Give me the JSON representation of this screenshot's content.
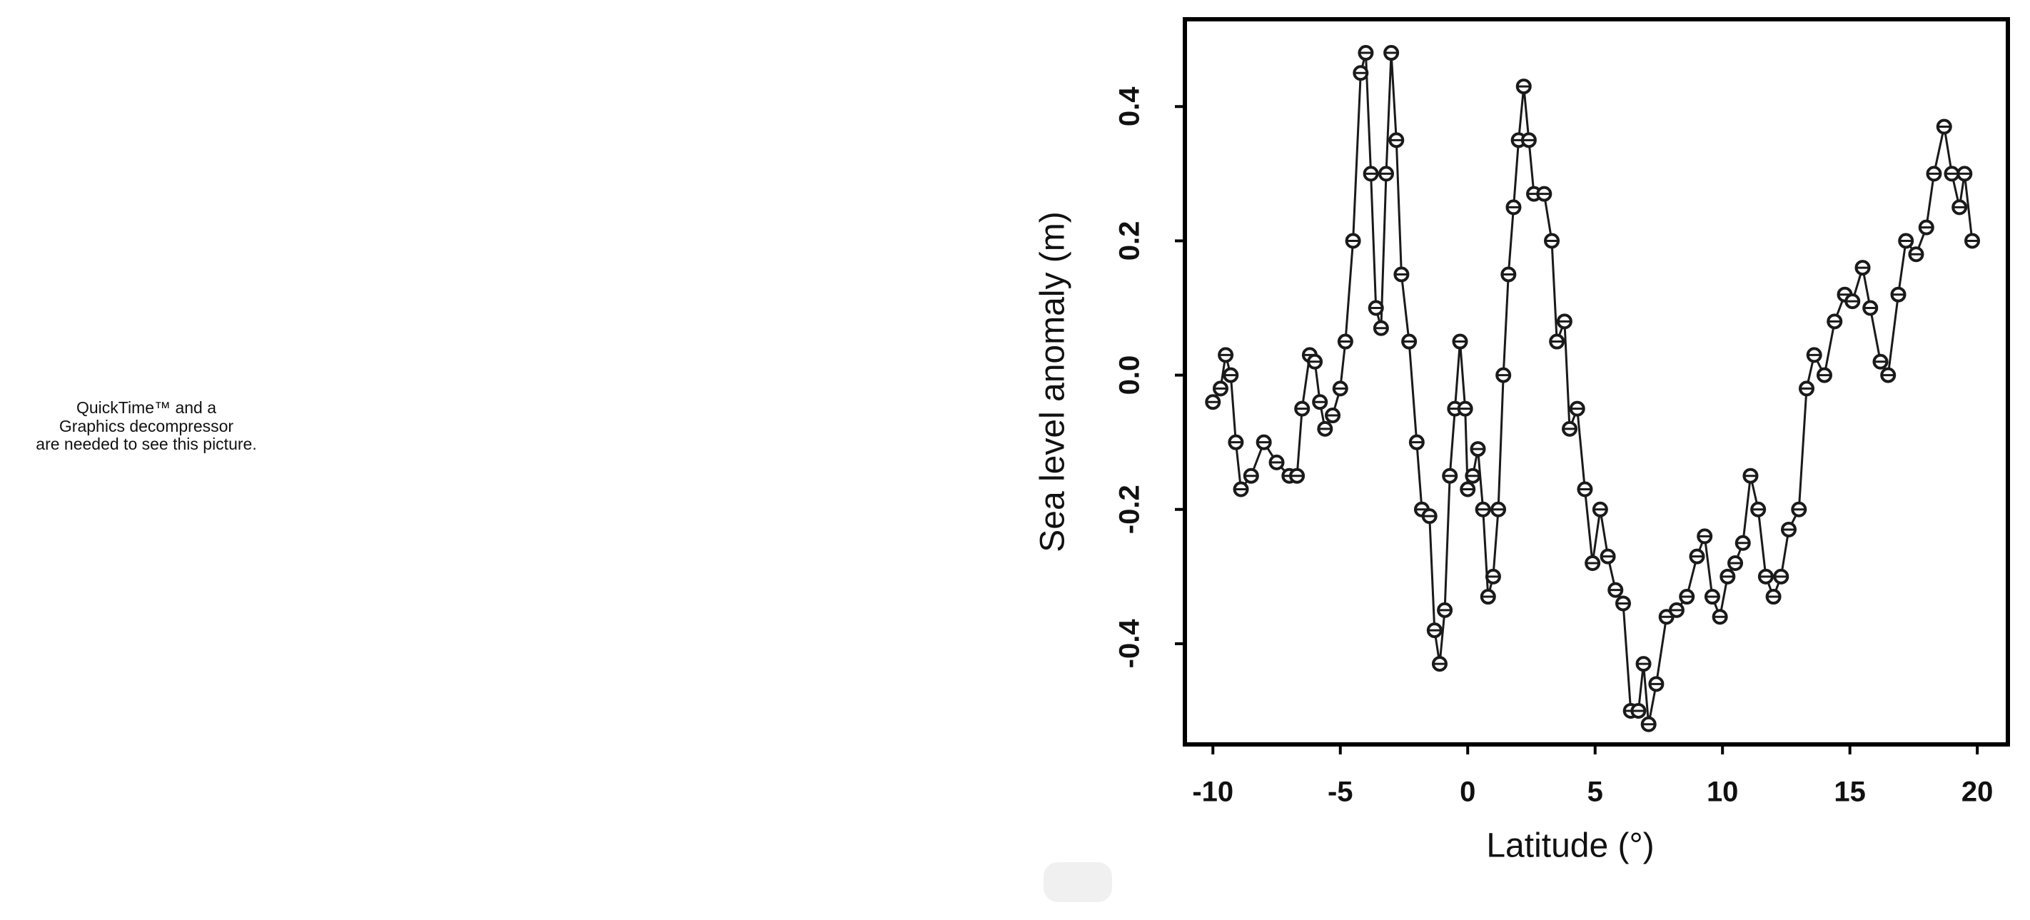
{
  "placeholder": {
    "lines": [
      "QuickTime™ and a",
      "Graphics decompressor",
      "are needed to see this picture."
    ]
  },
  "chart_data": {
    "type": "line",
    "xlabel": "Latitude (°)",
    "ylabel": "Sea level anomaly (m)",
    "color": "#1a1a1a",
    "markers": true,
    "x": [
      -10,
      -9.7,
      -9.5,
      -9.3,
      -9.1,
      -8.9,
      -8.5,
      -8.0,
      -7.5,
      -7.0,
      -6.7,
      -6.5,
      -6.2,
      -6.0,
      -5.8,
      -5.6,
      -5.3,
      -5.0,
      -4.8,
      -4.5,
      -4.2,
      -4.0,
      -3.8,
      -3.6,
      -3.4,
      -3.2,
      -3.0,
      -2.8,
      -2.6,
      -2.3,
      -2.0,
      -1.8,
      -1.5,
      -1.3,
      -1.1,
      -0.9,
      -0.7,
      -0.5,
      -0.3,
      -0.1,
      0.0,
      0.2,
      0.4,
      0.6,
      0.8,
      1.0,
      1.2,
      1.4,
      1.6,
      1.8,
      2.0,
      2.2,
      2.4,
      2.6,
      3.0,
      3.3,
      3.5,
      3.8,
      4.0,
      4.3,
      4.6,
      4.9,
      5.2,
      5.5,
      5.8,
      6.1,
      6.4,
      6.7,
      6.9,
      7.1,
      7.4,
      7.8,
      8.2,
      8.6,
      9.0,
      9.3,
      9.6,
      9.9,
      10.2,
      10.5,
      10.8,
      11.1,
      11.4,
      11.7,
      12.0,
      12.3,
      12.6,
      13.0,
      13.3,
      13.6,
      14.0,
      14.4,
      14.8,
      15.1,
      15.5,
      15.8,
      16.2,
      16.5,
      16.9,
      17.2,
      17.6,
      18.0,
      18.3,
      18.7,
      19.0,
      19.3,
      19.5,
      19.8
    ],
    "values": [
      -0.04,
      -0.02,
      0.03,
      0.0,
      -0.1,
      -0.17,
      -0.15,
      -0.1,
      -0.13,
      -0.15,
      -0.15,
      -0.05,
      0.03,
      0.02,
      -0.04,
      -0.08,
      -0.06,
      -0.02,
      0.05,
      0.2,
      0.45,
      0.48,
      0.3,
      0.1,
      0.07,
      0.3,
      0.48,
      0.35,
      0.15,
      0.05,
      -0.1,
      -0.2,
      -0.21,
      -0.38,
      -0.43,
      -0.35,
      -0.15,
      -0.05,
      0.05,
      -0.05,
      -0.17,
      -0.15,
      -0.11,
      -0.2,
      -0.33,
      -0.3,
      -0.2,
      0.0,
      0.15,
      0.25,
      0.35,
      0.43,
      0.35,
      0.27,
      0.27,
      0.2,
      0.05,
      0.08,
      -0.08,
      -0.05,
      -0.17,
      -0.28,
      -0.2,
      -0.27,
      -0.32,
      -0.34,
      -0.5,
      -0.5,
      -0.43,
      -0.52,
      -0.46,
      -0.36,
      -0.35,
      -0.33,
      -0.27,
      -0.24,
      -0.33,
      -0.36,
      -0.3,
      -0.28,
      -0.25,
      -0.15,
      -0.2,
      -0.3,
      -0.33,
      -0.3,
      -0.23,
      -0.2,
      -0.02,
      0.03,
      0.0,
      0.08,
      0.12,
      0.11,
      0.16,
      0.1,
      0.02,
      0.0,
      0.12,
      0.2,
      0.18,
      0.22,
      0.3,
      0.37,
      0.3,
      0.25,
      0.3,
      0.2
    ],
    "xlim": [
      -11.1,
      21.2
    ],
    "ylim": [
      -0.55,
      0.53
    ],
    "xticks": [
      -10,
      -5,
      0,
      5,
      10,
      15,
      20
    ],
    "yticks": [
      -0.4,
      -0.2,
      {
        "value": 0,
        "label": "0.0"
      },
      0.2,
      0.4
    ]
  }
}
